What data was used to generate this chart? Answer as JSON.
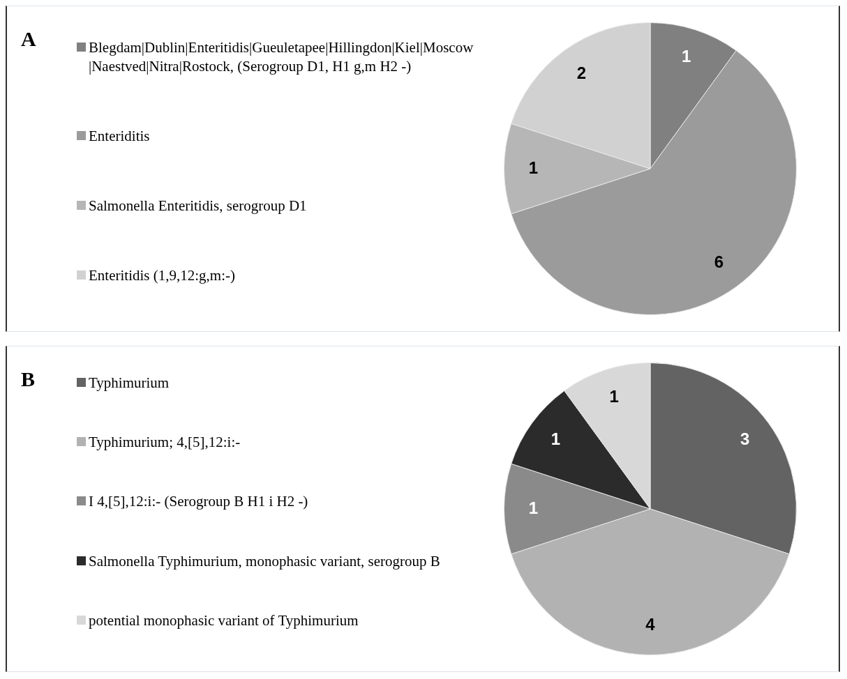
{
  "chart_data": [
    {
      "type": "pie",
      "title": "A",
      "categories": [
        "Blegdam|Dublin|Enteritidis|Gueuletapee|Hillingdon|Kiel|Moscow|Naestved|Nitra|Rostock, (Serogroup D1, H1 g,m H2 -)",
        "Enteriditis",
        "Salmonella Enteritidis, serogroup D1",
        "Enteritidis (1,9,12:g,m:-)"
      ],
      "values": [
        1,
        6,
        1,
        2
      ],
      "colors": [
        "#808080",
        "#9b9b9b",
        "#b6b6b6",
        "#d1d1d1"
      ],
      "data_labels": true,
      "legend": "left"
    },
    {
      "type": "pie",
      "title": "B",
      "categories": [
        "Typhimurium",
        "Typhimurium;  4,[5],12:i:-",
        "I 4,[5],12:i:- (Serogroup B H1 i H2 -)",
        "Salmonella Typhimurium, monophasic variant, serogroup B",
        "potential monophasic variant of Typhimurium"
      ],
      "values": [
        3,
        4,
        1,
        1,
        1
      ],
      "colors": [
        "#636363",
        "#b2b2b2",
        "#8a8a8a",
        "#2b2b2b",
        "#d8d8d8"
      ],
      "data_labels": true,
      "legend": "left"
    }
  ]
}
